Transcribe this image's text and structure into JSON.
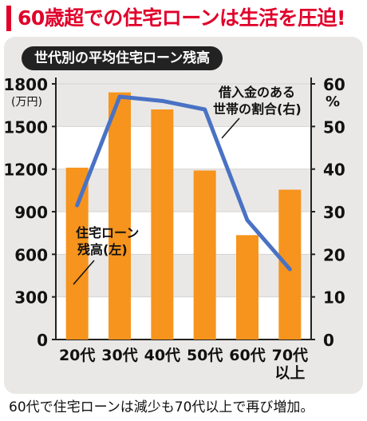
{
  "headline": "60歳超での住宅ローンは生活を圧迫!",
  "chart_title": "世代別の平均住宅ローン残高",
  "caption": "60代で住宅ローンは減少も70代以上で再び増加。",
  "colors": {
    "headline": "#e0002a",
    "bar": "#f7941d",
    "line": "#4a72c4",
    "panel": "#e9e8e6"
  },
  "chart_data": {
    "type": "bar",
    "categories": [
      "20代",
      "30代",
      "40代",
      "50代",
      "60代",
      "70代\n以上"
    ],
    "left_axis": {
      "unit": "(万円)",
      "ticks": [
        0,
        300,
        600,
        900,
        1200,
        1500,
        1800
      ],
      "ylim": [
        0,
        1800
      ]
    },
    "right_axis": {
      "unit": "%",
      "ticks": [
        0,
        10,
        20,
        30,
        40,
        50,
        60
      ],
      "ylim": [
        0,
        60
      ]
    },
    "series": [
      {
        "name": "住宅ローン残高(左)",
        "type": "bar",
        "axis": "left",
        "values": [
          1210,
          1740,
          1620,
          1190,
          735,
          1055
        ]
      },
      {
        "name": "借入金のある世帯の割合(右)",
        "type": "line",
        "axis": "right",
        "values": [
          31.5,
          57,
          56,
          54,
          28,
          16.5
        ]
      }
    ],
    "legend_labels": {
      "bar": [
        "住宅ローン",
        "残高(左)"
      ],
      "line": [
        "借入金のある",
        "世帯の割合(右)"
      ]
    }
  }
}
